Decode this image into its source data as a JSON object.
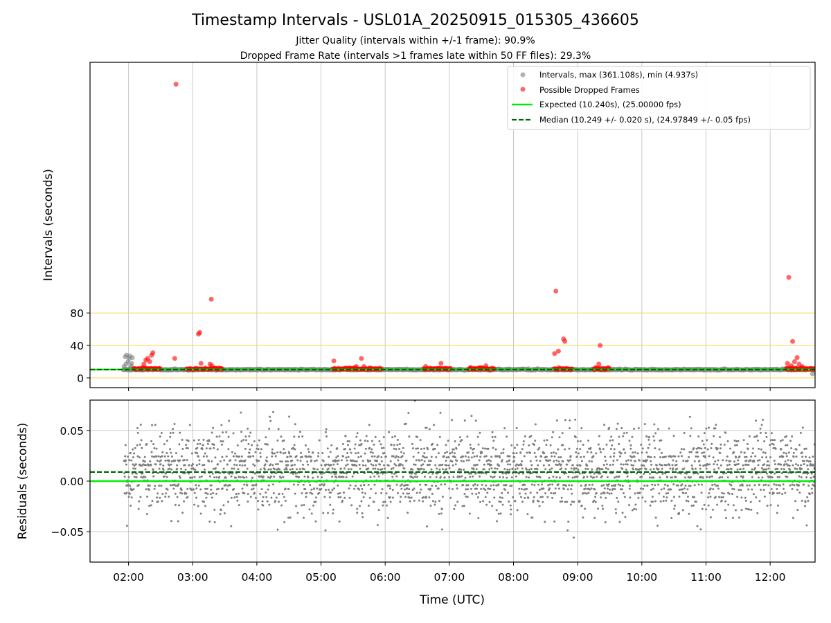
{
  "chart_data": {
    "type": "scatter",
    "title": "Timestamp Intervals - USL01A_20250915_015305_436605",
    "subtitle_lines": [
      "Jitter Quality (intervals within +/-1 frame): 90.9%",
      "Dropped Frame Rate (intervals >1 frames late within 50 FF files): 29.3%"
    ],
    "xlabel": "Time (UTC)",
    "x_unit": "hours UTC",
    "xlim": [
      1.4,
      12.7
    ],
    "x_ticks": [
      2,
      3,
      4,
      5,
      6,
      7,
      8,
      9,
      10,
      11,
      12
    ],
    "x_tick_labels": [
      "02:00",
      "03:00",
      "04:00",
      "05:00",
      "06:00",
      "07:00",
      "08:00",
      "09:00",
      "10:00",
      "11:00",
      "12:00"
    ],
    "top": {
      "ylabel": "Intervals (seconds)",
      "ylim": [
        -12,
        389
      ],
      "y_ticks": [
        0,
        40,
        80
      ],
      "y_tick_labels": [
        "0",
        "40",
        "80"
      ],
      "reference_lines": [
        0,
        40,
        80
      ],
      "reference_color": "#ffd866",
      "expected": 10.24,
      "median": 10.249,
      "legend_position": "top-right",
      "legend": [
        "Intervals, max (361.108s), min (4.937s)",
        "Possible Dropped Frames",
        "Expected (10.240s), (25.00000 fps)",
        "Median (10.249 +/- 0.020 s), (24.97849 +/- 0.05 fps)"
      ],
      "normal_color": "#7f7f7f",
      "dropped_color": "#ff0000",
      "expected_color": "#00ee00",
      "median_color": "#006400",
      "normal_points": [
        [
          1.93,
          14
        ],
        [
          1.95,
          26
        ],
        [
          1.97,
          28
        ],
        [
          1.99,
          20
        ],
        [
          2.01,
          24
        ],
        [
          2.02,
          27
        ],
        [
          2.04,
          15
        ],
        [
          2.05,
          18
        ],
        [
          2.06,
          25
        ],
        [
          1.96,
          17
        ],
        [
          2.03,
          12
        ],
        [
          12.63,
          12
        ],
        [
          12.66,
          5
        ],
        [
          12.69,
          12
        ]
      ],
      "dropped_points": [
        [
          2.74,
          362
        ],
        [
          3.29,
          97
        ],
        [
          3.09,
          54
        ],
        [
          3.11,
          56
        ],
        [
          8.66,
          107
        ],
        [
          12.29,
          124
        ],
        [
          12.35,
          45
        ],
        [
          8.78,
          48
        ],
        [
          8.8,
          45
        ],
        [
          8.7,
          33
        ],
        [
          8.64,
          30
        ],
        [
          9.35,
          40
        ],
        [
          2.38,
          31
        ],
        [
          2.36,
          28
        ],
        [
          2.3,
          24
        ],
        [
          2.27,
          22
        ],
        [
          2.33,
          20
        ],
        [
          2.24,
          17
        ],
        [
          2.72,
          24
        ],
        [
          3.13,
          18
        ],
        [
          3.27,
          17
        ],
        [
          3.3,
          15
        ],
        [
          5.2,
          21
        ],
        [
          5.63,
          24
        ],
        [
          5.55,
          14
        ],
        [
          5.67,
          14
        ],
        [
          6.63,
          14
        ],
        [
          6.87,
          18
        ],
        [
          7.33,
          13
        ],
        [
          7.57,
          15
        ],
        [
          9.28,
          13
        ],
        [
          9.33,
          17
        ],
        [
          12.27,
          18
        ],
        [
          12.38,
          20
        ],
        [
          12.42,
          25
        ],
        [
          12.45,
          17
        ],
        [
          12.5,
          14
        ],
        [
          12.33,
          15
        ]
      ],
      "dropped_segments": [
        [
          2.08,
          2.5
        ],
        [
          2.9,
          3.47
        ],
        [
          5.18,
          5.95
        ],
        [
          6.6,
          7.02
        ],
        [
          7.3,
          7.7
        ],
        [
          8.63,
          8.92
        ],
        [
          9.25,
          9.5
        ],
        [
          12.25,
          12.68
        ]
      ],
      "median_x_start": 1.4
    },
    "bottom": {
      "ylabel": "Residuals (seconds)",
      "ylim": [
        -0.08,
        0.08
      ],
      "y_ticks": [
        -0.05,
        0.0,
        0.05
      ],
      "y_tick_labels": [
        "−0.05",
        "0.00",
        "0.05"
      ],
      "expected_residual": 0.0,
      "median_residual": 0.009,
      "point_color": "#7f7f7f",
      "x_range": [
        1.93,
        12.7
      ],
      "n_points": 2800,
      "y_mean": 0.01,
      "y_std": 0.02
    }
  }
}
